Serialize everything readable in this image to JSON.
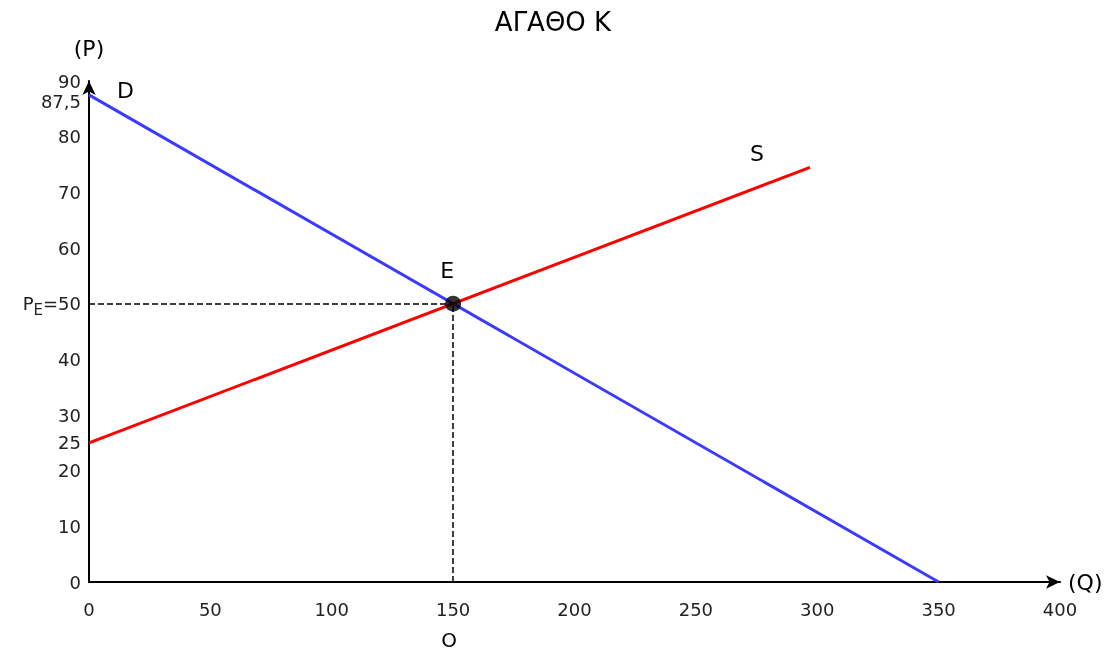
{
  "chart_data": {
    "type": "line",
    "title": "ΑΓΑΘΟ Κ",
    "xlabel": "(Q)",
    "ylabel": "(P)",
    "series": [
      {
        "name": "D",
        "color": "#3b3bff",
        "x": [
          0,
          350
        ],
        "values": [
          87.5,
          0
        ]
      },
      {
        "name": "S",
        "color": "#ff0000",
        "x": [
          0,
          297
        ],
        "values": [
          25,
          74.5
        ]
      },
      {
        "type": "scatter",
        "color": "#000000",
        "x": [
          150
        ],
        "values": [
          50
        ],
        "marker": "circle"
      }
    ],
    "xlim": [
      0,
      400
    ],
    "xticks": [
      0,
      50,
      100,
      150,
      200,
      250,
      300,
      350,
      400
    ],
    "ylim": [
      0,
      90
    ],
    "yticks": [
      0,
      10,
      20,
      {
        "value": 25,
        "label": "25"
      },
      30,
      40,
      {
        "value": 50,
        "label": "P$_{E}$=50"
      },
      60,
      70,
      80,
      {
        "value": 87.5,
        "label": "87,5"
      },
      90
    ],
    "ref_lines": [
      {
        "axis": "y",
        "value": 50,
        "color": "#000000",
        "line_style": "dashed"
      },
      {
        "axis": "x",
        "value": 150,
        "color": "#000000",
        "line_style": "dashed"
      }
    ],
    "annotations": [
      {
        "text": "E",
        "x": 150,
        "y": 50
      },
      "O"
    ],
    "marker": "none",
    "line_style": "solid",
    "grid": false,
    "legend": false
  }
}
